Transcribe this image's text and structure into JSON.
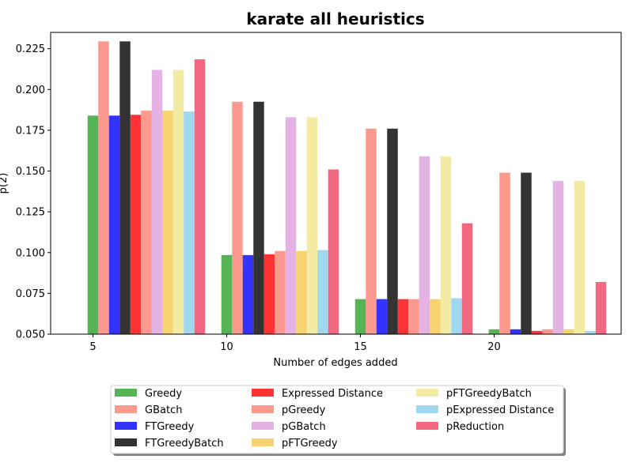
{
  "chart_data": {
    "type": "bar",
    "title": "karate all heuristics",
    "xlabel": "Number of edges added",
    "ylabel": "p(2)",
    "ylim": [
      0.05,
      0.235
    ],
    "yticks": [
      "0.050",
      "0.075",
      "0.100",
      "0.125",
      "0.150",
      "0.175",
      "0.200",
      "0.225"
    ],
    "categories": [
      "5",
      "10",
      "15",
      "20"
    ],
    "grid": false,
    "legend_position": "bottom-center",
    "series": [
      {
        "name": "Greedy",
        "color": "#2ca02c",
        "values": [
          0.184,
          0.0985,
          0.0715,
          0.053
        ]
      },
      {
        "name": "GBatch",
        "color": "#fa8072",
        "values": [
          0.2295,
          0.1925,
          0.176,
          0.149
        ]
      },
      {
        "name": "FTGreedy",
        "color": "#0000ff",
        "values": [
          0.184,
          0.0985,
          0.0715,
          0.053
        ]
      },
      {
        "name": "FTGreedyBatch",
        "color": "#000000",
        "values": [
          0.2295,
          0.1925,
          0.176,
          0.149
        ]
      },
      {
        "name": "Expressed Distance",
        "color": "#ff0000",
        "values": [
          0.1845,
          0.099,
          0.0715,
          0.052
        ]
      },
      {
        "name": "pGreedy",
        "color": "#fa8072",
        "values": [
          0.187,
          0.101,
          0.0715,
          0.053
        ]
      },
      {
        "name": "pGBatch",
        "color": "#dda0dd",
        "values": [
          0.212,
          0.183,
          0.159,
          0.144
        ]
      },
      {
        "name": "pFTGreedy",
        "color": "#f4c84c",
        "values": [
          0.187,
          0.101,
          0.0715,
          0.053
        ]
      },
      {
        "name": "pFTGreedyBatch",
        "color": "#f0e68c",
        "values": [
          0.212,
          0.183,
          0.159,
          0.144
        ]
      },
      {
        "name": "pExpressed Distance",
        "color": "#87ceeb",
        "values": [
          0.1865,
          0.1015,
          0.072,
          0.052
        ]
      },
      {
        "name": "pReduction",
        "color": "#ee4260",
        "values": [
          0.2185,
          0.151,
          0.118,
          0.082
        ]
      }
    ]
  }
}
